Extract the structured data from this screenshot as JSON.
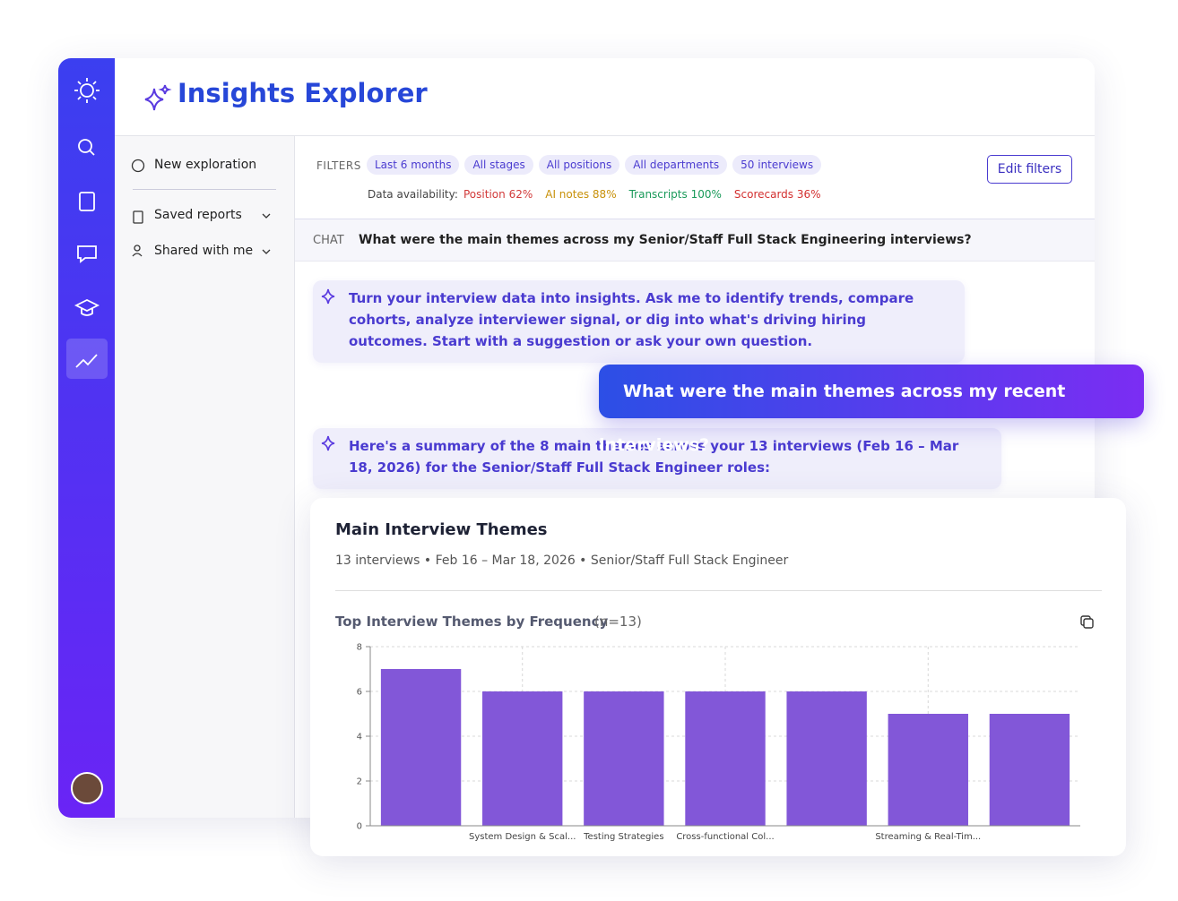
{
  "header": {
    "title": "Insights Explorer"
  },
  "nav": {
    "items": [
      "New exploration",
      "Saved reports",
      "Shared with me"
    ]
  },
  "filters": {
    "label": "FILTERS",
    "chips": [
      "Last 6 months",
      "All stages",
      "All positions",
      "All departments",
      "50 interviews"
    ],
    "button": "Edit filters",
    "availability_label": "Data availability:",
    "availability": [
      {
        "name": "Position",
        "value": "62%"
      },
      {
        "name": "AI notes",
        "value": "88%"
      },
      {
        "name": "Transcripts",
        "value": "100%"
      },
      {
        "name": "Scorecards",
        "value": "36%"
      }
    ]
  },
  "chat": {
    "label": "CHAT",
    "question": "What were the main themes across my Senior/Staff Full Stack Engineering interviews?"
  },
  "messages": {
    "intro": "Turn your interview data into insights. Ask me to identify trends, compare cohorts, analyze interviewer signal, or dig into what's driving hiring outcomes. Start with a suggestion or ask your own question.",
    "user": "What were the main themes across my recent interviews?",
    "summary": "Here's a summary of the 8 main themes across your 13 interviews (Feb 16 – Mar 18, 2026) for the Senior/Staff Full Stack Engineer roles:"
  },
  "card": {
    "title": "Main Interview Themes",
    "subtitle": "13 interviews • Feb 16 – Mar 18, 2026 • Senior/Staff Full Stack Engineer"
  },
  "chart_data": {
    "type": "bar",
    "title": "Top Interview Themes by Frequency",
    "subtitle": "(n=13)",
    "categories": [
      null,
      "System Design & Scal...",
      "Testing Strategies",
      "Cross-functional Col...",
      null,
      "Streaming & Real-Tim...",
      null
    ],
    "values": [
      7,
      6,
      6,
      6,
      6,
      5,
      5
    ],
    "color": "#8257d8",
    "ylim": [
      0,
      8
    ],
    "yticks": [
      0,
      2,
      4,
      6,
      8
    ],
    "grid": true
  }
}
